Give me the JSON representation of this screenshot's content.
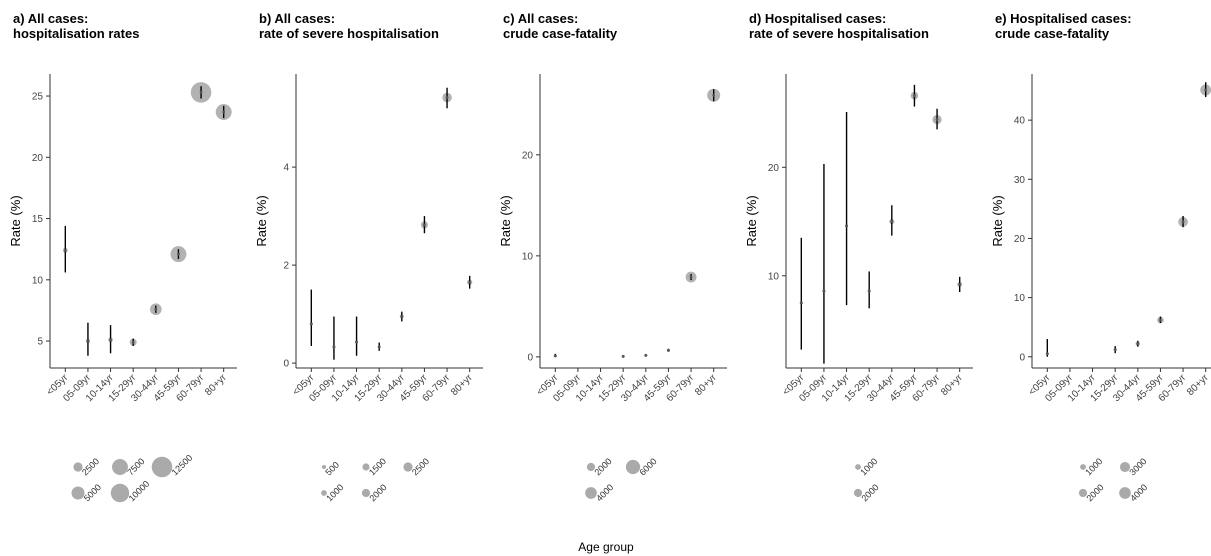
{
  "chart_data": {
    "type": "scatter",
    "xlabel": "Age group",
    "categories": [
      "<05yr",
      "05-09yr",
      "10-14yr",
      "15-29yr",
      "30-44yr",
      "45-59yr",
      "60-79yr",
      "80+yr"
    ],
    "point_color": "#aaaaaa",
    "errorbar_color": "#000000",
    "panels": [
      {
        "title": [
          "a) All cases:",
          "hospitalisation rates"
        ],
        "ylabel": "Rate (%)",
        "ylim": [
          2.8,
          26.8
        ],
        "yticks": [
          5,
          10,
          15,
          20,
          25
        ],
        "points": [
          {
            "x": "<05yr",
            "y": 12.4,
            "lo": 10.6,
            "hi": 14.4,
            "n": 700
          },
          {
            "x": "05-09yr",
            "y": 5.0,
            "lo": 3.8,
            "hi": 6.5,
            "n": 550
          },
          {
            "x": "10-14yr",
            "y": 5.1,
            "lo": 4.0,
            "hi": 6.3,
            "n": 650
          },
          {
            "x": "15-29yr",
            "y": 4.9,
            "lo": 4.6,
            "hi": 5.2,
            "n": 1500
          },
          {
            "x": "30-44yr",
            "y": 7.6,
            "lo": 7.3,
            "hi": 7.9,
            "n": 4000
          },
          {
            "x": "45-59yr",
            "y": 12.1,
            "lo": 11.7,
            "hi": 12.5,
            "n": 7500
          },
          {
            "x": "60-79yr",
            "y": 25.3,
            "lo": 24.8,
            "hi": 25.8,
            "n": 12500
          },
          {
            "x": "80+yr",
            "y": 23.7,
            "lo": 23.2,
            "hi": 24.2,
            "n": 7500
          }
        ],
        "legend": [
          {
            "label": "2500",
            "n": 2500
          },
          {
            "label": "5000",
            "n": 5000
          },
          {
            "label": "7500",
            "n": 7500
          },
          {
            "label": "10000",
            "n": 10000
          },
          {
            "label": "12500",
            "n": 12500
          }
        ]
      },
      {
        "title": [
          "b) All cases:",
          "rate of severe hospitalisation"
        ],
        "ylabel": "Rate (%)",
        "ylim": [
          -0.1,
          5.9
        ],
        "yticks": [
          0,
          2,
          4
        ],
        "points": [
          {
            "x": "<05yr",
            "y": 0.8,
            "lo": 0.35,
            "hi": 1.5,
            "n": 80
          },
          {
            "x": "05-09yr",
            "y": 0.33,
            "lo": 0.07,
            "hi": 0.95,
            "n": 60
          },
          {
            "x": "10-14yr",
            "y": 0.43,
            "lo": 0.15,
            "hi": 0.95,
            "n": 80
          },
          {
            "x": "15-29yr",
            "y": 0.33,
            "lo": 0.25,
            "hi": 0.42,
            "n": 200
          },
          {
            "x": "30-44yr",
            "y": 0.95,
            "lo": 0.85,
            "hi": 1.05,
            "n": 500
          },
          {
            "x": "45-59yr",
            "y": 2.82,
            "lo": 2.65,
            "hi": 3.0,
            "n": 1500
          },
          {
            "x": "60-79yr",
            "y": 5.42,
            "lo": 5.2,
            "hi": 5.62,
            "n": 2700
          },
          {
            "x": "80+yr",
            "y": 1.65,
            "lo": 1.52,
            "hi": 1.78,
            "n": 800
          }
        ],
        "legend": [
          {
            "label": "500",
            "n": 500
          },
          {
            "label": "1000",
            "n": 1000
          },
          {
            "label": "1500",
            "n": 1500
          },
          {
            "label": "2000",
            "n": 2000
          },
          {
            "label": "2500",
            "n": 2500
          }
        ]
      },
      {
        "title": [
          "c) All cases:",
          "crude case-fatality"
        ],
        "ylabel": "Rate (%)",
        "ylim": [
          -1.1,
          28.0
        ],
        "yticks": [
          0,
          10,
          20
        ],
        "points": [
          {
            "x": "<05yr",
            "y": 0.1,
            "lo": 0.0,
            "hi": 0.3,
            "n": 15
          },
          {
            "x": "15-29yr",
            "y": 0.05,
            "lo": 0.02,
            "hi": 0.1,
            "n": 20
          },
          {
            "x": "30-44yr",
            "y": 0.15,
            "lo": 0.1,
            "hi": 0.25,
            "n": 70
          },
          {
            "x": "45-59yr",
            "y": 0.65,
            "lo": 0.55,
            "hi": 0.8,
            "n": 250
          },
          {
            "x": "60-79yr",
            "y": 7.9,
            "lo": 7.6,
            "hi": 8.2,
            "n": 3500
          },
          {
            "x": "80+yr",
            "y": 25.9,
            "lo": 25.3,
            "hi": 26.5,
            "n": 5000
          }
        ],
        "legend": [
          {
            "label": "2000",
            "n": 2000
          },
          {
            "label": "4000",
            "n": 4000
          },
          {
            "label": "6000",
            "n": 6000
          }
        ]
      },
      {
        "title": [
          "d) Hospitalised cases:",
          "rate of severe hospitalisation"
        ],
        "ylabel": "Rate (%)",
        "ylim": [
          1.5,
          28.6
        ],
        "yticks": [
          10,
          20
        ],
        "points": [
          {
            "x": "<05yr",
            "y": 7.5,
            "lo": 3.2,
            "hi": 13.5,
            "n": 80
          },
          {
            "x": "05-09yr",
            "y": 8.6,
            "lo": 1.9,
            "hi": 20.3,
            "n": 60
          },
          {
            "x": "10-14yr",
            "y": 14.6,
            "lo": 7.3,
            "hi": 25.1,
            "n": 80
          },
          {
            "x": "15-29yr",
            "y": 8.6,
            "lo": 7.0,
            "hi": 10.4,
            "n": 300
          },
          {
            "x": "30-44yr",
            "y": 15.0,
            "lo": 13.7,
            "hi": 16.5,
            "n": 800
          },
          {
            "x": "45-59yr",
            "y": 26.6,
            "lo": 25.6,
            "hi": 27.6,
            "n": 1700
          },
          {
            "x": "60-79yr",
            "y": 24.4,
            "lo": 23.5,
            "hi": 25.4,
            "n": 2500
          },
          {
            "x": "80+yr",
            "y": 9.2,
            "lo": 8.5,
            "hi": 9.9,
            "n": 700
          }
        ],
        "legend": [
          {
            "label": "1000",
            "n": 1000
          },
          {
            "label": "2000",
            "n": 2000
          }
        ]
      },
      {
        "title": [
          "e) Hospitalised cases:",
          "crude case-fatality"
        ],
        "ylabel": "Rate (%)",
        "ylim": [
          -1.9,
          47.8
        ],
        "yticks": [
          0,
          10,
          20,
          30,
          40
        ],
        "points": [
          {
            "x": "<05yr",
            "y": 0.5,
            "lo": 0.0,
            "hi": 3.0,
            "n": 60
          },
          {
            "x": "15-29yr",
            "y": 1.2,
            "lo": 0.6,
            "hi": 1.8,
            "n": 250
          },
          {
            "x": "30-44yr",
            "y": 2.2,
            "lo": 1.7,
            "hi": 2.7,
            "n": 600
          },
          {
            "x": "45-59yr",
            "y": 6.2,
            "lo": 5.7,
            "hi": 6.8,
            "n": 1300
          },
          {
            "x": "60-79yr",
            "y": 22.8,
            "lo": 21.9,
            "hi": 23.8,
            "n": 2800
          },
          {
            "x": "80+yr",
            "y": 45.1,
            "lo": 43.9,
            "hi": 46.4,
            "n": 3500
          }
        ],
        "legend": [
          {
            "label": "1000",
            "n": 1000
          },
          {
            "label": "2000",
            "n": 2000
          },
          {
            "label": "3000",
            "n": 3000
          },
          {
            "label": "4000",
            "n": 4000
          }
        ]
      }
    ]
  }
}
